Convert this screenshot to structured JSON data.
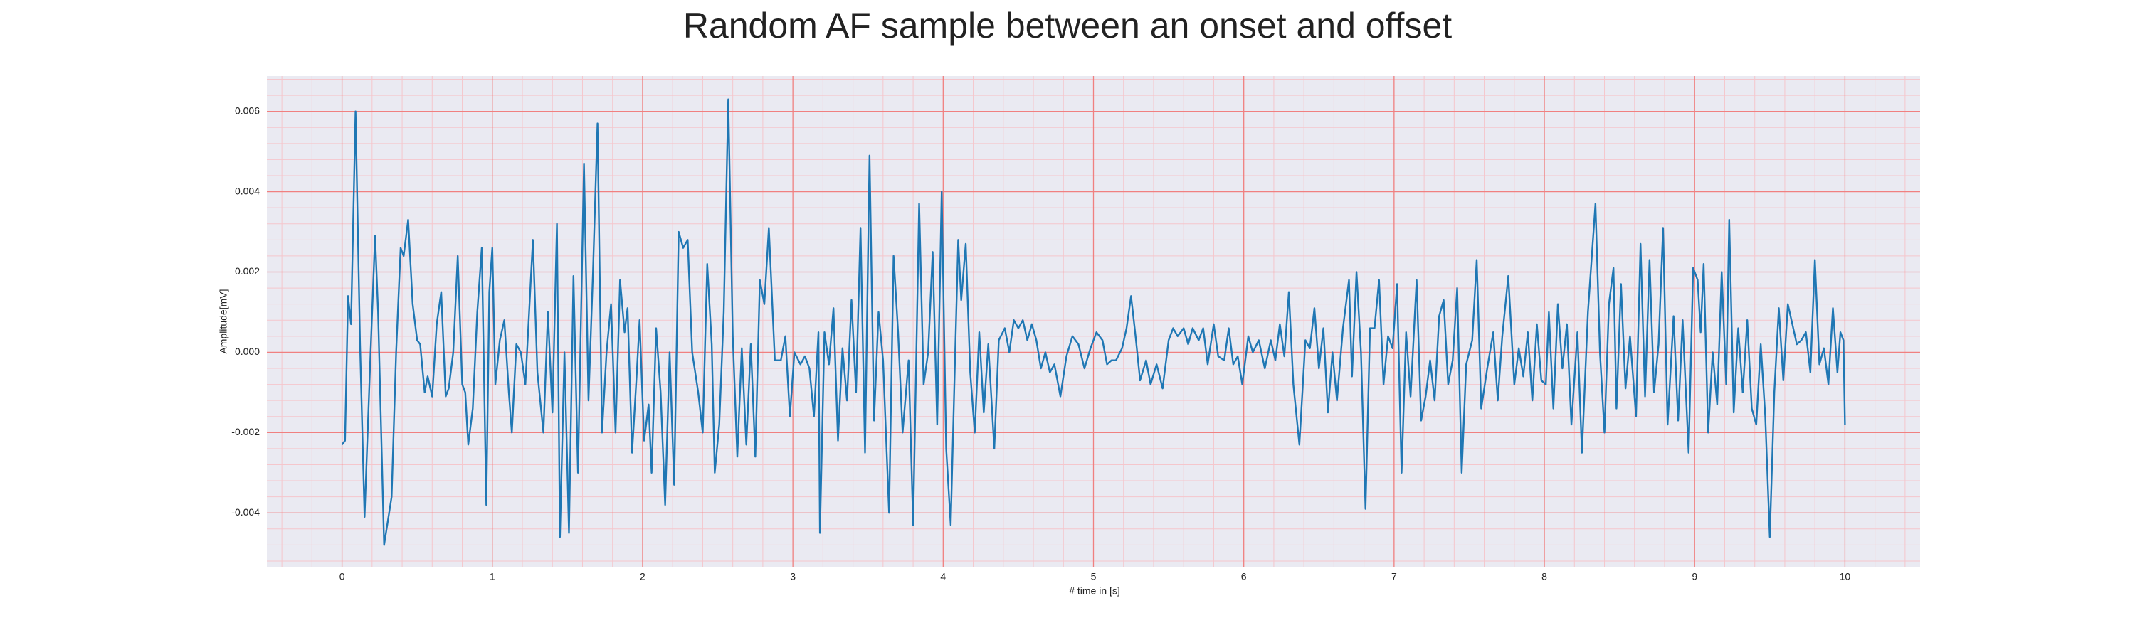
{
  "chart_data": {
    "type": "line",
    "title": "Random AF sample between an onset and offset",
    "x_label": "# time in [s]",
    "y_label": "Amplitude[mV]",
    "xlim": [
      -0.5,
      10.5
    ],
    "ylim": [
      -0.00536,
      0.00688
    ],
    "xticks": [
      0,
      1,
      2,
      3,
      4,
      5,
      6,
      7,
      8,
      9,
      10
    ],
    "yticks": [
      {
        "value": -0.004,
        "label": "-0.004"
      },
      {
        "value": -0.002,
        "label": "-0.002"
      },
      {
        "value": 0,
        "label": "0.000"
      },
      {
        "value": 0.002,
        "label": "0.002"
      },
      {
        "value": 0.004,
        "label": "0.004"
      },
      {
        "value": 0.006,
        "label": "0.006"
      }
    ],
    "grid": true,
    "minor_grid": true,
    "grid_color": "#f08080",
    "minor_grid_color": "#f5c6cc",
    "background": "#eaeaf2",
    "color": "#1f77b4",
    "x": [
      0.0,
      0.02,
      0.04,
      0.06,
      0.09,
      0.12,
      0.15,
      0.19,
      0.22,
      0.24,
      0.28,
      0.33,
      0.36,
      0.39,
      0.41,
      0.44,
      0.47,
      0.5,
      0.52,
      0.55,
      0.57,
      0.6,
      0.63,
      0.66,
      0.69,
      0.71,
      0.74,
      0.77,
      0.8,
      0.82,
      0.84,
      0.87,
      0.9,
      0.93,
      0.96,
      0.98,
      1.0,
      1.02,
      1.05,
      1.08,
      1.11,
      1.13,
      1.16,
      1.19,
      1.22,
      1.27,
      1.3,
      1.34,
      1.37,
      1.4,
      1.43,
      1.45,
      1.48,
      1.51,
      1.54,
      1.57,
      1.61,
      1.64,
      1.67,
      1.7,
      1.73,
      1.76,
      1.79,
      1.82,
      1.85,
      1.88,
      1.9,
      1.93,
      1.96,
      1.98,
      2.01,
      2.04,
      2.06,
      2.09,
      2.12,
      2.15,
      2.18,
      2.21,
      2.24,
      2.27,
      2.3,
      2.33,
      2.37,
      2.4,
      2.43,
      2.46,
      2.48,
      2.51,
      2.54,
      2.57,
      2.6,
      2.63,
      2.66,
      2.69,
      2.72,
      2.75,
      2.78,
      2.81,
      2.84,
      2.88,
      2.92,
      2.95,
      2.98,
      3.01,
      3.05,
      3.08,
      3.11,
      3.14,
      3.17,
      3.18,
      3.21,
      3.24,
      3.27,
      3.3,
      3.33,
      3.36,
      3.39,
      3.42,
      3.45,
      3.48,
      3.51,
      3.54,
      3.57,
      3.6,
      3.64,
      3.67,
      3.7,
      3.73,
      3.77,
      3.8,
      3.84,
      3.87,
      3.9,
      3.93,
      3.96,
      3.99,
      4.02,
      4.05,
      4.08,
      4.1,
      4.12,
      4.15,
      4.18,
      4.21,
      4.24,
      4.27,
      4.3,
      4.34,
      4.37,
      4.41,
      4.44,
      4.47,
      4.5,
      4.53,
      4.56,
      4.59,
      4.62,
      4.65,
      4.68,
      4.71,
      4.74,
      4.78,
      4.82,
      4.86,
      4.9,
      4.94,
      4.98,
      5.02,
      5.06,
      5.09,
      5.12,
      5.15,
      5.19,
      5.22,
      5.25,
      5.28,
      5.31,
      5.35,
      5.38,
      5.42,
      5.46,
      5.5,
      5.53,
      5.56,
      5.6,
      5.63,
      5.66,
      5.7,
      5.73,
      5.76,
      5.8,
      5.83,
      5.87,
      5.9,
      5.93,
      5.96,
      5.99,
      6.03,
      6.06,
      6.1,
      6.14,
      6.18,
      6.21,
      6.24,
      6.27,
      6.3,
      6.33,
      6.37,
      6.41,
      6.44,
      6.47,
      6.5,
      6.53,
      6.56,
      6.59,
      6.62,
      6.66,
      6.7,
      6.72,
      6.75,
      6.78,
      6.81,
      6.84,
      6.87,
      6.9,
      6.93,
      6.96,
      6.99,
      7.02,
      7.05,
      7.08,
      7.11,
      7.15,
      7.18,
      7.21,
      7.24,
      7.27,
      7.3,
      7.33,
      7.36,
      7.39,
      7.42,
      7.45,
      7.48,
      7.52,
      7.55,
      7.58,
      7.62,
      7.66,
      7.69,
      7.72,
      7.76,
      7.8,
      7.83,
      7.86,
      7.89,
      7.92,
      7.95,
      7.98,
      8.01,
      8.03,
      8.06,
      8.09,
      8.12,
      8.15,
      8.18,
      8.22,
      8.25,
      8.29,
      8.34,
      8.37,
      8.4,
      8.43,
      8.46,
      8.48,
      8.51,
      8.54,
      8.57,
      8.61,
      8.64,
      8.67,
      8.7,
      8.73,
      8.76,
      8.79,
      8.82,
      8.86,
      8.89,
      8.92,
      8.96,
      8.99,
      9.02,
      9.04,
      9.06,
      9.09,
      9.12,
      9.15,
      9.18,
      9.21,
      9.23,
      9.26,
      9.29,
      9.32,
      9.35,
      9.38,
      9.41,
      9.44,
      9.47,
      9.5,
      9.53,
      9.56,
      9.59,
      9.62,
      9.65,
      9.68,
      9.71,
      9.74,
      9.77,
      9.8,
      9.83,
      9.86,
      9.89,
      9.92,
      9.95,
      9.97,
      9.99,
      10.0
    ],
    "values": [
      -0.0023,
      -0.0022,
      0.0014,
      0.0007,
      0.006,
      0.0002,
      -0.0041,
      0.0,
      0.0029,
      0.001,
      -0.0048,
      -0.0036,
      0.0,
      0.0026,
      0.0024,
      0.0033,
      0.0012,
      0.0003,
      0.0002,
      -0.001,
      -0.0006,
      -0.0011,
      0.0007,
      0.0015,
      -0.0011,
      -0.0009,
      0.0,
      0.0024,
      -0.0008,
      -0.001,
      -0.0023,
      -0.0014,
      0.001,
      0.0026,
      -0.0038,
      0.0015,
      0.0026,
      -0.0008,
      0.0003,
      0.0008,
      -0.001,
      -0.002,
      0.0002,
      0.0,
      -0.0008,
      0.0028,
      -0.0005,
      -0.002,
      0.001,
      -0.0015,
      0.0032,
      -0.0046,
      0.0,
      -0.0045,
      0.0019,
      -0.003,
      0.0047,
      -0.0012,
      0.002,
      0.0057,
      -0.002,
      0.0,
      0.0012,
      -0.002,
      0.0018,
      0.0005,
      0.0011,
      -0.0025,
      -0.0006,
      0.0008,
      -0.0022,
      -0.0013,
      -0.003,
      0.0006,
      -0.001,
      -0.0038,
      0.0,
      -0.0033,
      0.003,
      0.0026,
      0.0028,
      0.0,
      -0.001,
      -0.002,
      0.0022,
      0.0002,
      -0.003,
      -0.0018,
      0.001,
      0.0063,
      0.0004,
      -0.0026,
      0.0001,
      -0.0023,
      0.0002,
      -0.0026,
      0.0018,
      0.0012,
      0.0031,
      -0.0002,
      -0.0002,
      0.0004,
      -0.0016,
      0.0,
      -0.0003,
      -0.0001,
      -0.0004,
      -0.0016,
      0.0005,
      -0.0045,
      0.0005,
      -0.0003,
      0.0011,
      -0.0022,
      0.0001,
      -0.0012,
      0.0013,
      -0.001,
      0.0031,
      -0.0025,
      0.0049,
      -0.0017,
      0.001,
      -0.0002,
      -0.004,
      0.0024,
      0.0005,
      -0.002,
      -0.0002,
      -0.0043,
      0.0037,
      -0.0008,
      0.0,
      0.0025,
      -0.0018,
      0.004,
      -0.0024,
      -0.0043,
      0.0,
      0.0028,
      0.0013,
      0.0027,
      -0.0005,
      -0.002,
      0.0005,
      -0.0015,
      0.0002,
      -0.0024,
      0.0003,
      0.0006,
      0.0,
      0.0008,
      0.0006,
      0.0008,
      0.0003,
      0.0007,
      0.0003,
      -0.0004,
      0.0,
      -0.0005,
      -0.0003,
      -0.0011,
      -0.0001,
      0.0004,
      0.0002,
      -0.0004,
      0.0001,
      0.0005,
      0.0003,
      -0.0003,
      -0.0002,
      -0.0002,
      0.0001,
      0.0006,
      0.0014,
      0.0004,
      -0.0007,
      -0.0002,
      -0.0008,
      -0.0003,
      -0.0009,
      0.0003,
      0.0006,
      0.0004,
      0.0006,
      0.0002,
      0.0006,
      0.0003,
      0.0006,
      -0.0003,
      0.0007,
      -0.0001,
      -0.0002,
      0.0006,
      -0.0003,
      -0.0001,
      -0.0008,
      0.0004,
      0.0,
      0.0003,
      -0.0004,
      0.0003,
      -0.0002,
      0.0007,
      -0.0001,
      0.0015,
      -0.0008,
      -0.0023,
      0.0003,
      0.0001,
      0.0011,
      -0.0004,
      0.0006,
      -0.0015,
      0.0,
      -0.0012,
      0.0006,
      0.0018,
      -0.0006,
      0.002,
      0.0,
      -0.0039,
      0.0006,
      0.0006,
      0.0018,
      -0.0008,
      0.0004,
      0.0001,
      0.0017,
      -0.003,
      0.0005,
      -0.0011,
      0.0018,
      -0.0017,
      -0.0011,
      -0.0002,
      -0.0012,
      0.0009,
      0.0013,
      -0.0008,
      -0.0002,
      0.0016,
      -0.003,
      -0.0003,
      0.0003,
      0.0023,
      -0.0014,
      -0.0004,
      0.0005,
      -0.0012,
      0.0004,
      0.0019,
      -0.0008,
      0.0001,
      -0.0006,
      0.0005,
      -0.0012,
      0.0007,
      -0.0007,
      -0.0008,
      0.001,
      -0.0014,
      0.0012,
      -0.0004,
      0.0007,
      -0.0018,
      0.0005,
      -0.0025,
      0.001,
      0.0037,
      0.0,
      -0.002,
      0.0012,
      0.0021,
      -0.0014,
      0.0017,
      -0.0009,
      0.0004,
      -0.0016,
      0.0027,
      -0.0011,
      0.0023,
      -0.001,
      0.0002,
      0.0031,
      -0.0018,
      0.0009,
      -0.0017,
      0.0008,
      -0.0025,
      0.0021,
      0.0018,
      0.0005,
      0.0022,
      -0.002,
      0.0,
      -0.0013,
      0.002,
      -0.0008,
      0.0033,
      -0.0015,
      0.0006,
      -0.001,
      0.0008,
      -0.0014,
      -0.0018,
      0.0002,
      -0.0016,
      -0.0046,
      -0.001,
      0.0011,
      -0.0007,
      0.0012,
      0.0007,
      0.0002,
      0.0003,
      0.0005,
      -0.0005,
      0.0023,
      -0.0003,
      0.0001,
      -0.0008,
      0.0011,
      -0.0005,
      0.0005,
      0.0003,
      -0.0018
    ]
  }
}
